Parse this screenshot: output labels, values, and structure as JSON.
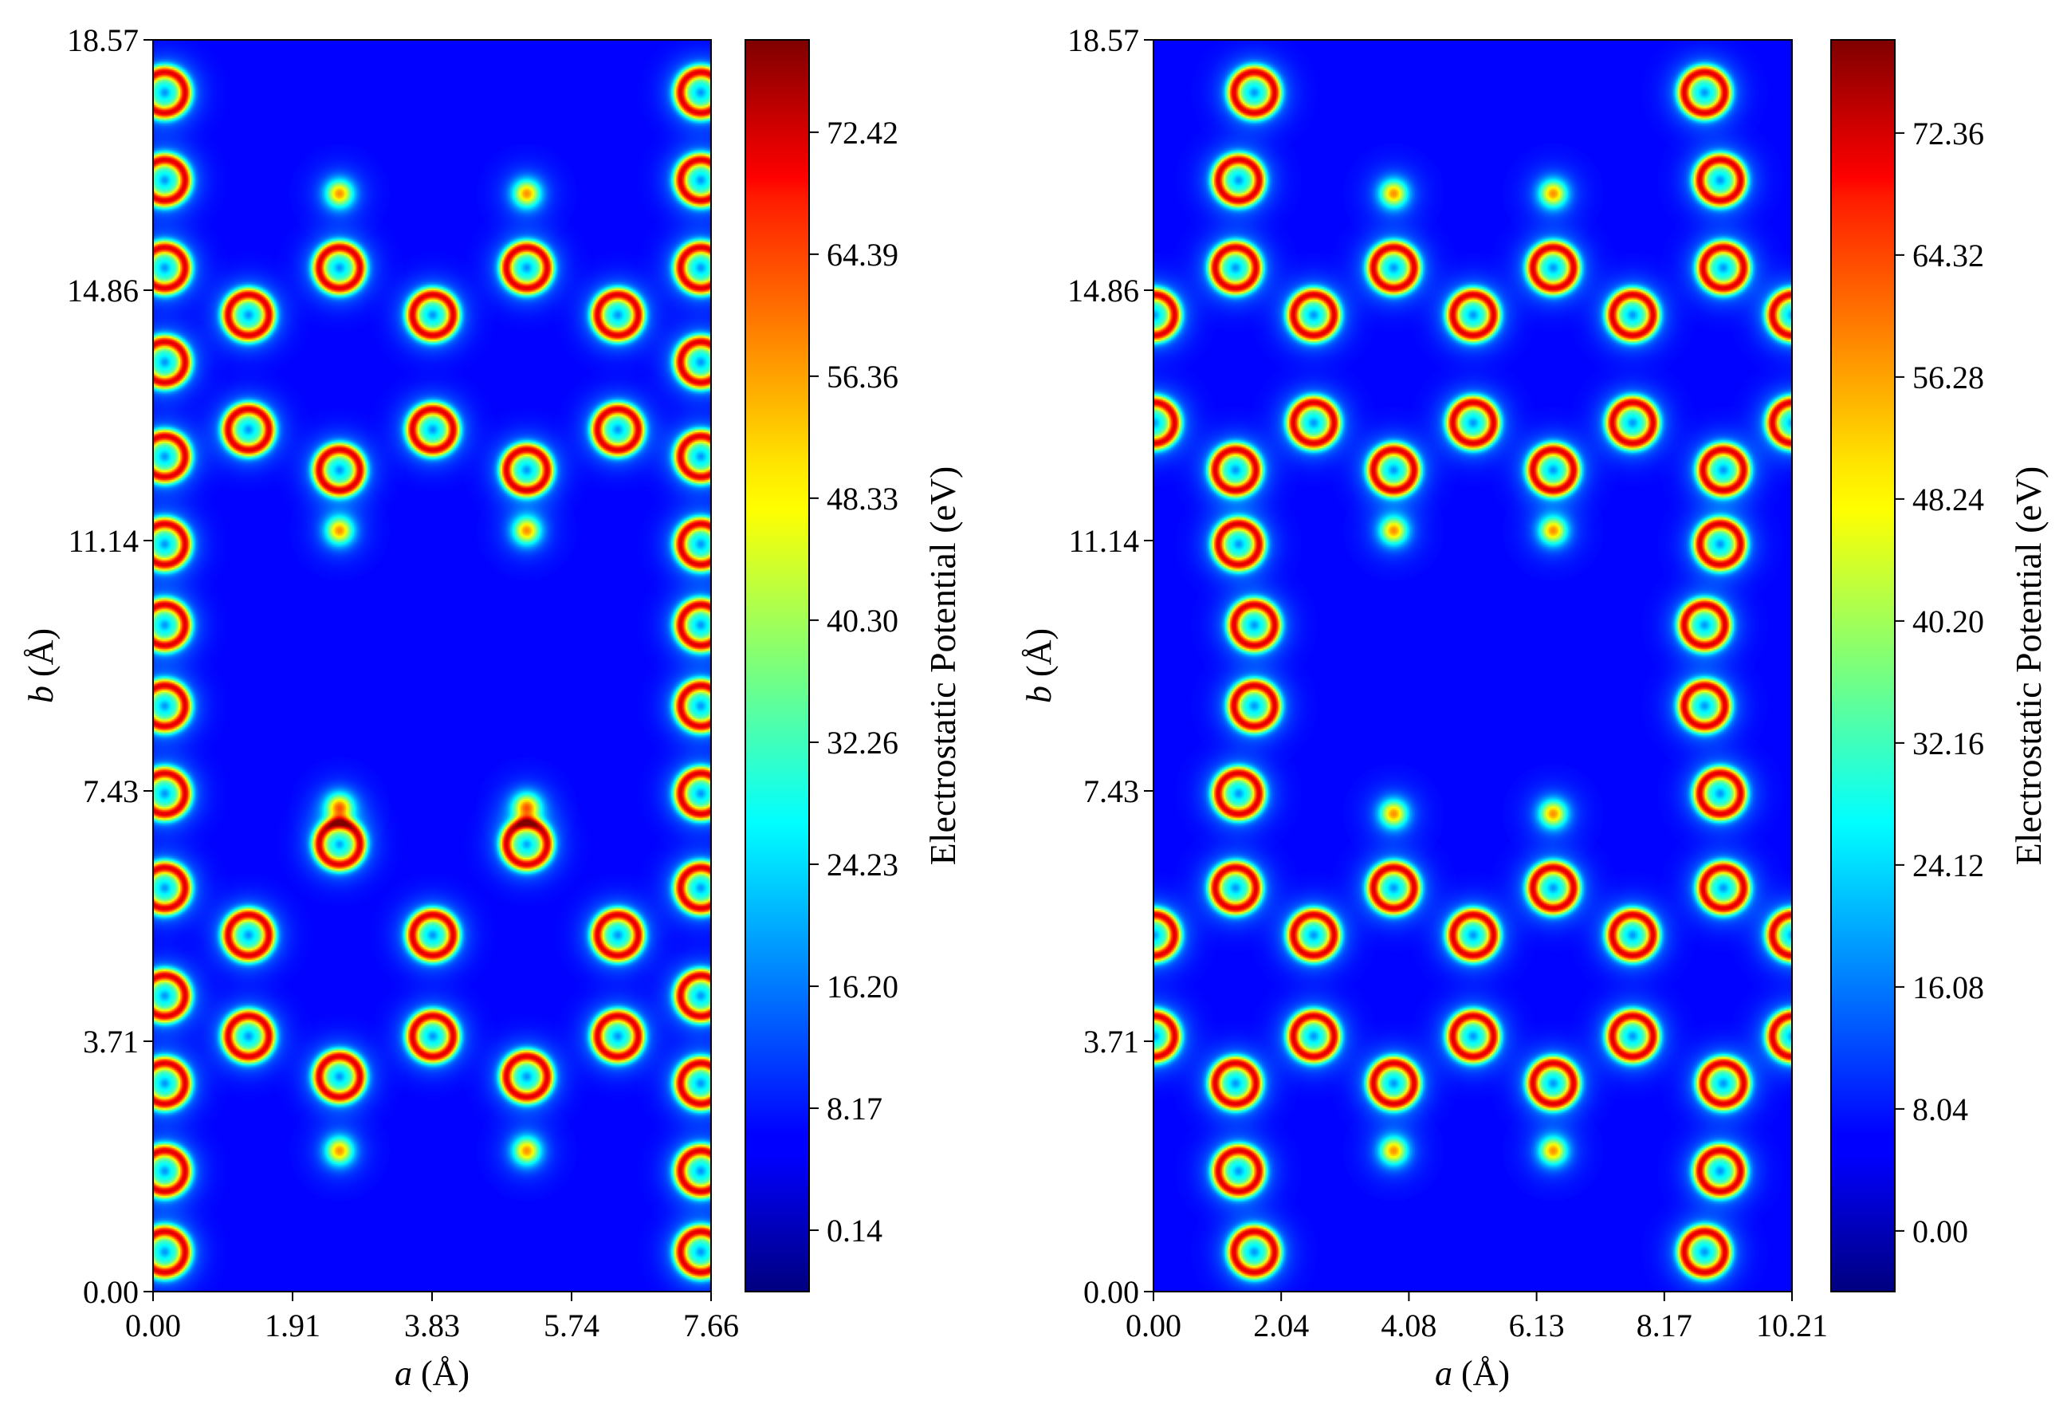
{
  "chart_data": [
    {
      "type": "heatmap",
      "title": "",
      "xlabel_var": "a",
      "xlabel_unit": " (Å)",
      "ylabel_var": "b",
      "ylabel_unit": " (Å)",
      "xlim": [
        0.0,
        7.66
      ],
      "ylim": [
        0.0,
        18.57
      ],
      "xticks": [
        "0.00",
        "1.91",
        "3.83",
        "5.74",
        "7.66"
      ],
      "yticks": [
        "0.00",
        "3.71",
        "7.43",
        "11.14",
        "14.86",
        "18.57"
      ],
      "colorbar": {
        "label": "Electrostatic Potential (eV)",
        "range": [
          -3.9,
          78.5
        ],
        "ticks": [
          0.14,
          8.17,
          16.2,
          24.23,
          32.26,
          40.3,
          48.33,
          56.36,
          64.39,
          72.42
        ],
        "tick_labels": [
          "0.14",
          "8.17",
          "16.20",
          "24.23",
          "32.26",
          "40.30",
          "48.33",
          "56.36",
          "64.39",
          "72.42"
        ]
      },
      "background_potential": 6.5,
      "atoms": {
        "species_C": [
          [
            2.55,
            6.65
          ],
          [
            5.12,
            6.65
          ],
          [
            1.3,
            5.3
          ],
          [
            3.83,
            5.3
          ],
          [
            6.37,
            5.3
          ],
          [
            1.3,
            3.8
          ],
          [
            3.83,
            3.8
          ],
          [
            6.37,
            3.8
          ],
          [
            2.55,
            3.2
          ],
          [
            5.12,
            3.2
          ],
          [
            2.55,
            15.2
          ],
          [
            5.12,
            15.2
          ],
          [
            1.3,
            14.5
          ],
          [
            3.83,
            14.5
          ],
          [
            6.37,
            14.5
          ],
          [
            1.3,
            12.8
          ],
          [
            3.83,
            12.8
          ],
          [
            6.37,
            12.8
          ],
          [
            2.55,
            12.2
          ],
          [
            5.12,
            12.2
          ],
          [
            0.15,
            0.6
          ],
          [
            7.51,
            0.6
          ],
          [
            0.15,
            1.8
          ],
          [
            7.51,
            1.8
          ],
          [
            0.15,
            3.1
          ],
          [
            7.51,
            3.1
          ],
          [
            0.15,
            4.4
          ],
          [
            7.51,
            4.4
          ],
          [
            0.15,
            6.0
          ],
          [
            7.51,
            6.0
          ],
          [
            0.15,
            7.4
          ],
          [
            7.51,
            7.4
          ],
          [
            0.15,
            8.7
          ],
          [
            7.51,
            8.7
          ],
          [
            0.15,
            9.9
          ],
          [
            7.51,
            9.9
          ],
          [
            0.15,
            11.1
          ],
          [
            7.51,
            11.1
          ],
          [
            0.15,
            12.4
          ],
          [
            7.51,
            12.4
          ],
          [
            0.15,
            13.8
          ],
          [
            7.51,
            13.8
          ],
          [
            0.15,
            15.2
          ],
          [
            7.51,
            15.2
          ],
          [
            0.15,
            16.5
          ],
          [
            7.51,
            16.5
          ],
          [
            0.15,
            17.8
          ],
          [
            7.51,
            17.8
          ]
        ],
        "species_H": [
          [
            2.55,
            2.1
          ],
          [
            5.12,
            2.1
          ],
          [
            2.55,
            7.2
          ],
          [
            5.12,
            7.2
          ],
          [
            2.55,
            11.3
          ],
          [
            5.12,
            11.3
          ],
          [
            2.55,
            16.3
          ],
          [
            5.12,
            16.3
          ]
        ]
      }
    },
    {
      "type": "heatmap",
      "title": "",
      "xlabel_var": "a",
      "xlabel_unit": " (Å)",
      "ylabel_var": "b",
      "ylabel_unit": " (Å)",
      "xlim": [
        0.0,
        10.21
      ],
      "ylim": [
        0.0,
        18.57
      ],
      "xticks": [
        "0.00",
        "2.04",
        "4.08",
        "6.13",
        "8.17",
        "10.21"
      ],
      "yticks": [
        "0.00",
        "3.71",
        "7.43",
        "11.14",
        "14.86",
        "18.57"
      ],
      "colorbar": {
        "label": "Electrostatic Potential (eV)",
        "range": [
          -4.0,
          78.5
        ],
        "ticks": [
          0.0,
          8.04,
          16.08,
          24.12,
          32.16,
          40.2,
          48.24,
          56.28,
          64.32,
          72.36
        ],
        "tick_labels": [
          "0.00",
          "8.04",
          "16.08",
          "24.12",
          "32.16",
          "40.20",
          "48.24",
          "56.28",
          "64.32",
          "72.36"
        ]
      },
      "background_potential": 6.5,
      "atoms": {
        "species_C": [
          [
            3.83,
            6.0
          ],
          [
            6.38,
            6.0
          ],
          [
            2.55,
            5.3
          ],
          [
            5.1,
            5.3
          ],
          [
            7.65,
            5.3
          ],
          [
            0.0,
            5.3
          ],
          [
            10.21,
            5.3
          ],
          [
            2.55,
            3.8
          ],
          [
            5.1,
            3.8
          ],
          [
            7.65,
            3.8
          ],
          [
            0.0,
            3.8
          ],
          [
            10.21,
            3.8
          ],
          [
            3.83,
            3.1
          ],
          [
            6.38,
            3.1
          ],
          [
            3.83,
            15.2
          ],
          [
            6.38,
            15.2
          ],
          [
            2.55,
            14.5
          ],
          [
            5.1,
            14.5
          ],
          [
            7.65,
            14.5
          ],
          [
            0.0,
            14.5
          ],
          [
            10.21,
            14.5
          ],
          [
            2.55,
            12.9
          ],
          [
            5.1,
            12.9
          ],
          [
            7.65,
            12.9
          ],
          [
            0.0,
            12.9
          ],
          [
            10.21,
            12.9
          ],
          [
            3.83,
            12.2
          ],
          [
            6.38,
            12.2
          ],
          [
            1.6,
            0.6
          ],
          [
            8.8,
            0.6
          ],
          [
            1.35,
            1.8
          ],
          [
            9.05,
            1.8
          ],
          [
            1.3,
            3.1
          ],
          [
            9.1,
            3.1
          ],
          [
            1.3,
            6.0
          ],
          [
            9.1,
            6.0
          ],
          [
            1.35,
            7.4
          ],
          [
            9.05,
            7.4
          ],
          [
            1.6,
            8.7
          ],
          [
            8.8,
            8.7
          ],
          [
            1.6,
            9.9
          ],
          [
            8.8,
            9.9
          ],
          [
            1.35,
            11.1
          ],
          [
            9.05,
            11.1
          ],
          [
            1.3,
            12.2
          ],
          [
            9.1,
            12.2
          ],
          [
            1.3,
            15.2
          ],
          [
            9.1,
            15.2
          ],
          [
            1.35,
            16.5
          ],
          [
            9.05,
            16.5
          ],
          [
            1.6,
            17.8
          ],
          [
            8.8,
            17.8
          ]
        ],
        "species_H": [
          [
            3.83,
            2.1
          ],
          [
            6.38,
            2.1
          ],
          [
            3.83,
            7.1
          ],
          [
            6.38,
            7.1
          ],
          [
            3.83,
            11.3
          ],
          [
            6.38,
            11.3
          ],
          [
            3.83,
            16.3
          ],
          [
            6.38,
            16.3
          ]
        ]
      }
    }
  ]
}
